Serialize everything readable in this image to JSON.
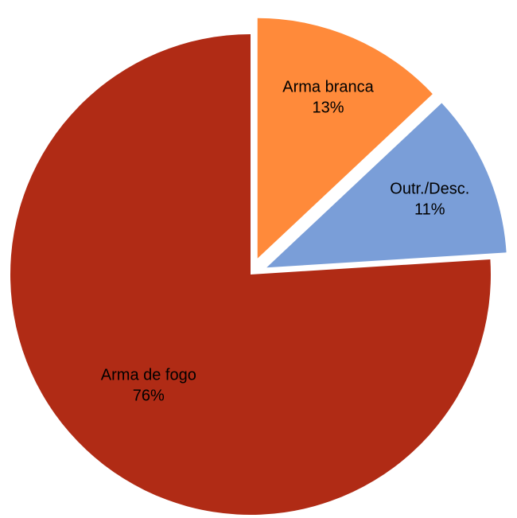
{
  "chart_data": {
    "type": "pie",
    "title": "",
    "slices": [
      {
        "name": "Arma branca",
        "value": 13,
        "value_label": "13%",
        "color": "#FF8A3A",
        "exploded": true
      },
      {
        "name": "Outr./Desc.",
        "value": 11,
        "value_label": "11%",
        "color": "#7A9ED8",
        "exploded": true
      },
      {
        "name": "Arma de fogo",
        "value": 76,
        "value_label": "76%",
        "color": "#B02B15",
        "exploded": false
      }
    ],
    "start_angle_deg": 0,
    "direction": "clockwise",
    "legend": "none",
    "labels_on_slices": true
  }
}
